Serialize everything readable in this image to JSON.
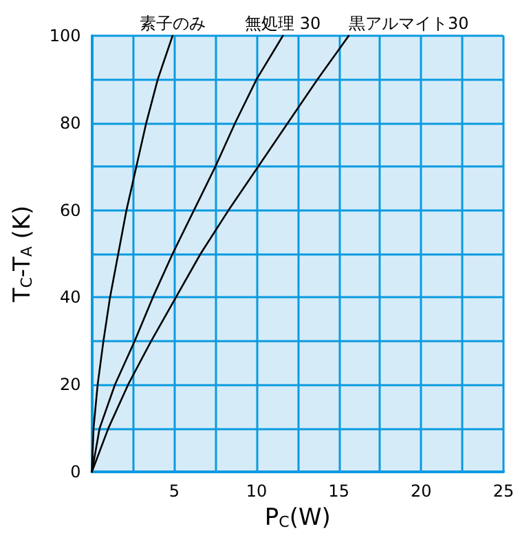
{
  "chart_data": {
    "type": "line",
    "xlabel": "P$_{C}$(W)",
    "ylabel": "T$_{C}$-T$_{A}$ (K)",
    "xlim": [
      0,
      25
    ],
    "ylim": [
      0,
      100
    ],
    "xticks": [
      {
        "value": 0,
        "label": null
      },
      {
        "value": 2.5,
        "label": null
      },
      5,
      {
        "value": 7.5,
        "label": null
      },
      10,
      {
        "value": 12.5,
        "label": null
      },
      15,
      {
        "value": 17.5,
        "label": null
      },
      20,
      {
        "value": 22.5,
        "label": null
      },
      25
    ],
    "yticks": [
      0,
      {
        "value": 10,
        "label": null
      },
      20,
      {
        "value": 30,
        "label": null
      },
      40,
      {
        "value": 50,
        "label": null
      },
      60,
      {
        "value": 70,
        "label": null
      },
      80,
      {
        "value": 90,
        "label": null
      },
      100
    ],
    "grid": true,
    "legend": false,
    "marker": "none",
    "line_style": "solid",
    "series": [
      {
        "name": "素子のみ",
        "color": "#000000",
        "x": [
          0,
          0.1,
          0.35,
          0.7,
          1.1,
          1.6,
          2.1,
          2.7,
          3.3,
          4.0,
          4.9
        ],
        "values": [
          0,
          10,
          20,
          30,
          40,
          50,
          60,
          70,
          80,
          90,
          100
        ]
      },
      {
        "name": "無処理 30",
        "color": "#000000",
        "x": [
          0,
          0.47,
          1.4,
          2.6,
          3.7,
          4.9,
          6.2,
          7.5,
          8.7,
          10.0,
          11.6
        ],
        "values": [
          0,
          10,
          20,
          30,
          40,
          50,
          60,
          70,
          80,
          90,
          100
        ]
      },
      {
        "name": "黒アルマイト30",
        "color": "#000000",
        "x": [
          0,
          1.0,
          2.2,
          3.6,
          5.1,
          6.6,
          8.3,
          10.1,
          11.9,
          13.7,
          15.6
        ],
        "values": [
          0,
          10,
          20,
          30,
          40,
          50,
          60,
          70,
          80,
          90,
          100
        ]
      }
    ]
  }
}
